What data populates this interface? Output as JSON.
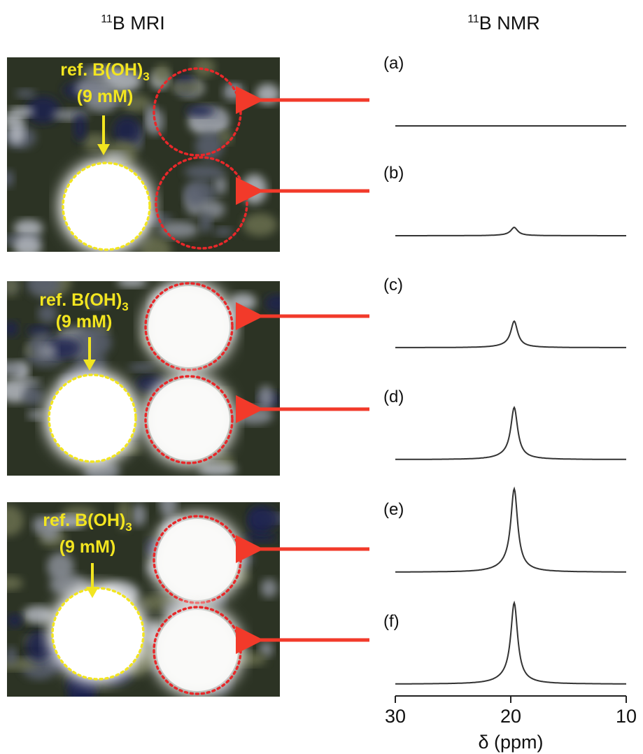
{
  "mri_title": {
    "sup": "11",
    "text": "B MRI"
  },
  "nmr_title": {
    "sup": "11",
    "text": "B NMR"
  },
  "mri_panels": [
    {
      "ref_label": {
        "text": "ref. B(OH)",
        "sub": "3"
      },
      "concentration": "(9 mM)"
    },
    {
      "ref_label": {
        "text": "ref. B(OH)",
        "sub": "3"
      },
      "concentration": "(9 mM)"
    },
    {
      "ref_label": {
        "text": "ref. B(OH)",
        "sub": "3"
      },
      "concentration": "(9 mM)"
    }
  ],
  "spectra": {
    "xlim": [
      30,
      10
    ],
    "xticks": [
      30,
      20,
      10
    ],
    "x_label": "δ (ppm)",
    "peak_ppm": 19.7,
    "labels": [
      "(a)",
      "(b)",
      "(c)",
      "(d)",
      "(e)",
      "(f)"
    ],
    "peak_heights": [
      0,
      12,
      38,
      75,
      120,
      117
    ]
  }
}
